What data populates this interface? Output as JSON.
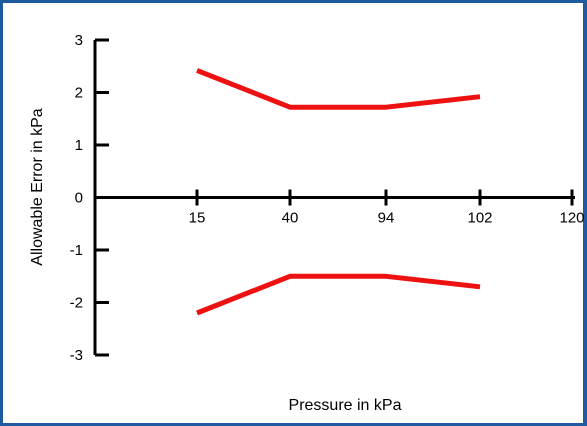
{
  "chart_data": {
    "type": "line",
    "title": "",
    "xlabel": "Pressure in kPa",
    "ylabel": "Allowable Error in kPa",
    "x_categories": [
      "15",
      "40",
      "94",
      "102",
      "120"
    ],
    "ylim": [
      -3,
      3
    ],
    "y_ticks": [
      "3",
      "2",
      "1",
      "0",
      "-1",
      "-2",
      "-3"
    ],
    "grid": false,
    "legend": "none",
    "series": [
      {
        "color": "#ee1111",
        "x": [
          "15",
          "40",
          "94",
          "102"
        ],
        "y": [
          2.42,
          1.72,
          1.72,
          1.92
        ]
      },
      {
        "color": "#ee1111",
        "x": [
          "15",
          "40",
          "94",
          "102"
        ],
        "y": [
          -2.2,
          -1.5,
          -1.5,
          -1.7
        ]
      }
    ],
    "colors": {
      "frame": "#1e5aa0",
      "axis": "#000000",
      "series": "#ee1111"
    }
  }
}
